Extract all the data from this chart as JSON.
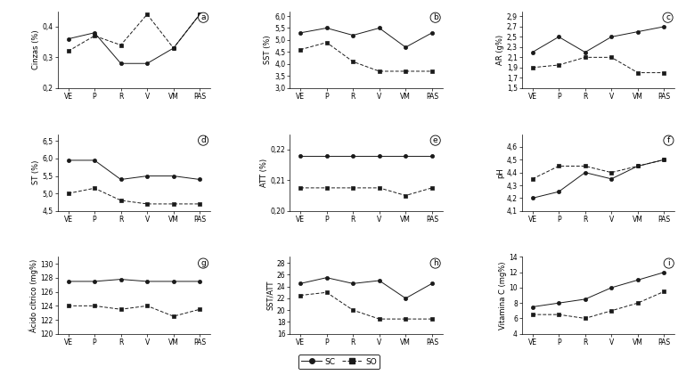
{
  "x_labels": [
    "VE",
    "P",
    "R",
    "V",
    "VM",
    "PAS"
  ],
  "subplots": [
    {
      "label": "a",
      "ylabel": "Cinzas (%)",
      "sc": [
        0.36,
        0.38,
        0.28,
        0.28,
        0.33,
        0.44
      ],
      "so": [
        0.32,
        0.37,
        0.34,
        0.44,
        0.33,
        0.44
      ],
      "ylim": [
        0.2,
        0.45
      ],
      "yticks": [
        0.2,
        0.3,
        0.4
      ],
      "yticklabels": [
        "0,2",
        "0,3",
        "0,4"
      ]
    },
    {
      "label": "b",
      "ylabel": "SST (%)",
      "sc": [
        5.3,
        5.5,
        5.2,
        5.5,
        4.7,
        5.3
      ],
      "so": [
        4.6,
        4.9,
        4.1,
        3.7,
        3.7,
        3.7
      ],
      "ylim": [
        3.0,
        6.2
      ],
      "yticks": [
        3.0,
        3.5,
        4.0,
        4.5,
        5.0,
        5.5,
        6.0
      ],
      "yticklabels": [
        "3,0",
        "3,5",
        "4,0",
        "4,5",
        "5,0",
        "5,5",
        "6,0"
      ]
    },
    {
      "label": "c",
      "ylabel": "AR (g%)",
      "sc": [
        2.2,
        2.5,
        2.2,
        2.5,
        2.6,
        2.7
      ],
      "so": [
        1.9,
        1.95,
        2.1,
        2.1,
        1.8,
        1.8
      ],
      "ylim": [
        1.5,
        3.0
      ],
      "yticks": [
        1.5,
        1.7,
        1.9,
        2.1,
        2.3,
        2.5,
        2.7,
        2.9
      ],
      "yticklabels": [
        "1,5",
        "1,7",
        "1,9",
        "2,1",
        "2,3",
        "2,5",
        "2,7",
        "2,9"
      ]
    },
    {
      "label": "d",
      "ylabel": "ST (%)",
      "sc": [
        5.95,
        5.95,
        5.4,
        5.5,
        5.5,
        5.4
      ],
      "so": [
        5.0,
        5.15,
        4.8,
        4.7,
        4.7,
        4.7
      ],
      "ylim": [
        4.5,
        6.7
      ],
      "yticks": [
        4.5,
        5.0,
        5.5,
        6.0,
        6.5
      ],
      "yticklabels": [
        "4,5",
        "5,0",
        "5,5",
        "6,0",
        "6,5"
      ]
    },
    {
      "label": "e",
      "ylabel": "ATT (%)",
      "sc": [
        0.218,
        0.218,
        0.218,
        0.218,
        0.218,
        0.218
      ],
      "so": [
        0.2075,
        0.2075,
        0.2075,
        0.2075,
        0.205,
        0.2075
      ],
      "ylim": [
        0.2,
        0.225
      ],
      "yticks": [
        0.2,
        0.21,
        0.22
      ],
      "yticklabels": [
        "0,20",
        "0,21",
        "0,22"
      ]
    },
    {
      "label": "f",
      "ylabel": "pH",
      "sc": [
        4.2,
        4.25,
        4.4,
        4.35,
        4.45,
        4.5
      ],
      "so": [
        4.35,
        4.45,
        4.45,
        4.4,
        4.45,
        4.5
      ],
      "ylim": [
        4.1,
        4.7
      ],
      "yticks": [
        4.1,
        4.2,
        4.3,
        4.4,
        4.5,
        4.6
      ],
      "yticklabels": [
        "4,1",
        "4,2",
        "4,3",
        "4,4",
        "4,5",
        "4,6"
      ]
    },
    {
      "label": "g",
      "ylabel": "Ácido cítrico (mg%)",
      "sc": [
        127.5,
        127.5,
        127.8,
        127.5,
        127.5,
        127.5
      ],
      "so": [
        124.0,
        124.0,
        123.5,
        124.0,
        122.5,
        123.5
      ],
      "ylim": [
        120,
        131
      ],
      "yticks": [
        120,
        122,
        124,
        126,
        128,
        130
      ],
      "yticklabels": [
        "120",
        "122",
        "124",
        "126",
        "128",
        "130"
      ]
    },
    {
      "label": "h",
      "ylabel": "SST/ATT",
      "sc": [
        24.5,
        25.5,
        24.5,
        25.0,
        22.0,
        24.5
      ],
      "so": [
        22.5,
        23.0,
        20.0,
        18.5,
        18.5,
        18.5
      ],
      "ylim": [
        16,
        29
      ],
      "yticks": [
        16,
        18,
        20,
        22,
        24,
        26,
        28
      ],
      "yticklabels": [
        "16",
        "18",
        "20",
        "22",
        "24",
        "26",
        "28"
      ]
    },
    {
      "label": "i",
      "ylabel": "Vitamina C (mg%)",
      "sc": [
        7.5,
        8.0,
        8.5,
        10.0,
        11.0,
        12.0
      ],
      "so": [
        6.5,
        6.5,
        6.0,
        7.0,
        8.0,
        9.5
      ],
      "ylim": [
        4,
        14
      ],
      "yticks": [
        4,
        6,
        8,
        10,
        12,
        14
      ],
      "yticklabels": [
        "4",
        "6",
        "8",
        "10",
        "12",
        "14"
      ]
    }
  ],
  "legend_sc": "SC",
  "legend_so": "SO",
  "sc_color": "#1a1a1a",
  "so_color": "#1a1a1a",
  "sc_marker": "o",
  "so_marker": "s",
  "sc_linestyle": "-",
  "so_linestyle": "--",
  "sc_markersize": 3.0,
  "so_markersize": 3.0,
  "linewidth": 0.7,
  "tick_fontsize": 5.5,
  "label_fontsize": 6.0,
  "panel_label_fontsize": 6.5
}
